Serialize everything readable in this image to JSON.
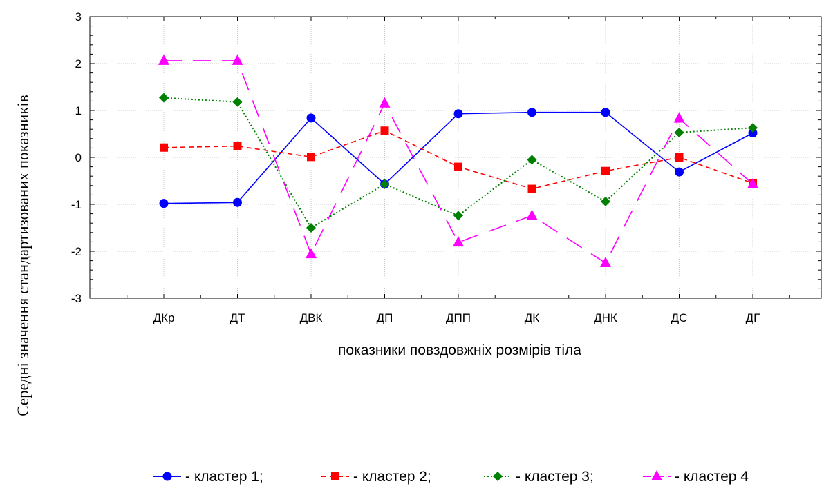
{
  "chart_data": {
    "type": "line",
    "title": "",
    "xlabel": "показники повздовжніх розмірів тіла",
    "ylabel": "Середні значення стандартизованих показників",
    "categories": [
      "ДКр",
      "ДТ",
      "ДВК",
      "ДП",
      "ДПП",
      "ДК",
      "ДНК",
      "ДС",
      "ДГ"
    ],
    "ylim": [
      -3,
      3
    ],
    "yticks": [
      -3,
      -2,
      -1,
      0,
      1,
      2,
      3
    ],
    "grid": true,
    "legend_position": "bottom",
    "series": [
      {
        "name": "кластер 1",
        "legend_label": "- кластер 1;",
        "color": "#0000ff",
        "marker": "circle",
        "line_style": "solid",
        "values": [
          -0.98,
          -0.96,
          0.84,
          -0.57,
          0.93,
          0.96,
          0.96,
          -0.31,
          0.52
        ]
      },
      {
        "name": "кластер 2",
        "legend_label": "- кластер 2;",
        "color": "#ff0000",
        "marker": "square",
        "line_style": "dashed",
        "values": [
          0.21,
          0.24,
          0.01,
          0.57,
          -0.2,
          -0.67,
          -0.29,
          0.0,
          -0.55
        ]
      },
      {
        "name": "кластер 3",
        "legend_label": "- кластер 3;",
        "color": "#008000",
        "marker": "diamond",
        "line_style": "dotted",
        "values": [
          1.27,
          1.18,
          -1.5,
          -0.57,
          -1.24,
          -0.05,
          -0.94,
          0.53,
          0.63
        ]
      },
      {
        "name": "кластер 4",
        "legend_label": "- кластер 4",
        "color": "#ff00ff",
        "marker": "triangle",
        "line_style": "long-dash",
        "values": [
          2.06,
          2.06,
          -2.06,
          1.15,
          -1.81,
          -1.24,
          -2.25,
          0.83,
          -0.57
        ]
      }
    ]
  }
}
